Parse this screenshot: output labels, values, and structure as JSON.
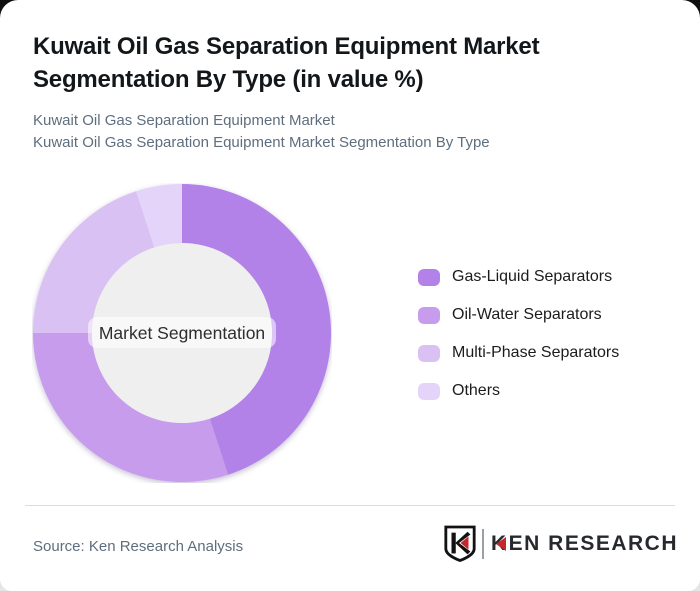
{
  "header": {
    "title": "Kuwait Oil Gas Separation Equipment Market Segmentation By Type (in value %)",
    "subtitle_line1": "Kuwait Oil Gas Separation Equipment Market",
    "subtitle_line2": "Kuwait Oil Gas Separation Equipment Market Segmentation By Type"
  },
  "chart_data": {
    "type": "pie",
    "subtype": "donut",
    "title": "Kuwait Oil Gas Separation Equipment Market Segmentation By Type (in value %)",
    "unit": "value %",
    "center_label": "Market Segmentation",
    "categories": [
      "Gas-Liquid Separators",
      "Oil-Water Separators",
      "Multi-Phase Separators",
      "Others"
    ],
    "values": [
      45,
      30,
      20,
      5
    ],
    "colors": [
      "#b282e8",
      "#c79ced",
      "#dac1f4",
      "#e5d4f9"
    ],
    "start_angle_deg": 0,
    "direction": "clockwise",
    "legend_position": "right",
    "hole_color": "#efefef",
    "center_label_color": "#2e2e2e"
  },
  "footer": {
    "source": "Source: Ken Research Analysis",
    "logo": {
      "shield_letter": "K",
      "brand_first_letter": "K",
      "brand_rest": "EN RESEARCH",
      "red": "#c5282c",
      "dark": "#26292e"
    }
  }
}
